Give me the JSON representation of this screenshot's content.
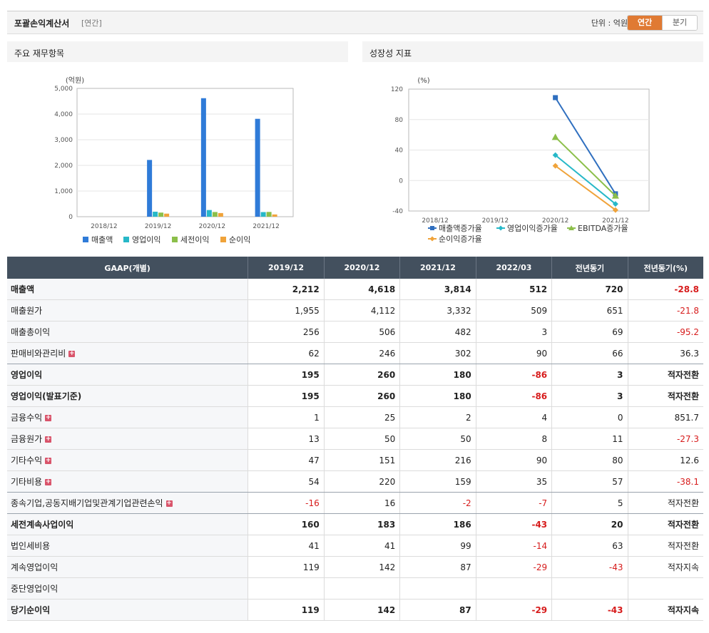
{
  "header": {
    "title": "포괄손익계산서",
    "period": "[연간]",
    "unit_label": "단위 : 억원",
    "toggle": [
      "연간",
      "분기"
    ],
    "active_toggle": "연간"
  },
  "panels": {
    "left_title": "주요 재무항목",
    "right_title": "성장성 지표"
  },
  "chart_data": [
    {
      "type": "bar",
      "title": "주요 재무항목",
      "ylabel": "(억원)",
      "categories": [
        "2018/12",
        "2019/12",
        "2020/12",
        "2021/12"
      ],
      "ylim": [
        0,
        5000
      ],
      "yticks": [
        "0",
        "1,000",
        "2,000",
        "3,000",
        "4,000",
        "5,000"
      ],
      "grid": true,
      "legend": "bottom",
      "series": [
        {
          "name": "매출액",
          "color": "#2f7bd8",
          "values": [
            null,
            2212,
            4618,
            3814
          ]
        },
        {
          "name": "영업이익",
          "color": "#27b8c8",
          "values": [
            null,
            195,
            260,
            180
          ]
        },
        {
          "name": "세전이익",
          "color": "#8cbf4a",
          "values": [
            null,
            160,
            183,
            186
          ]
        },
        {
          "name": "순이익",
          "color": "#f0a33a",
          "values": [
            null,
            119,
            142,
            87
          ]
        }
      ]
    },
    {
      "type": "line",
      "title": "성장성 지표",
      "ylabel": "(%)",
      "categories": [
        "2018/12",
        "2019/12",
        "2020/12",
        "2021/12"
      ],
      "ylim": [
        -40,
        120
      ],
      "yticks": [
        "-40",
        "0",
        "40",
        "80",
        "120"
      ],
      "grid": true,
      "legend": "bottom",
      "series": [
        {
          "name": "매출액증가율",
          "color": "#2f6fbf",
          "marker": "square",
          "values": [
            null,
            null,
            108.8,
            -17.4
          ]
        },
        {
          "name": "영업이익증가율",
          "color": "#27b8c8",
          "marker": "diamond",
          "values": [
            null,
            null,
            33.3,
            -30.8
          ]
        },
        {
          "name": "EBITDA증가율",
          "color": "#8cbf4a",
          "marker": "triangle",
          "values": [
            null,
            null,
            57,
            -20
          ]
        },
        {
          "name": "순이익증가율",
          "color": "#f0a33a",
          "marker": "diamond",
          "values": [
            null,
            null,
            19.3,
            -38.7
          ]
        }
      ]
    }
  ],
  "table": {
    "headers": [
      "GAAP(개별)",
      "2019/12",
      "2020/12",
      "2021/12",
      "2022/03",
      "전년동기",
      "전년동기(%)"
    ],
    "rows": [
      {
        "label": "매출액",
        "bold": true,
        "plus": false,
        "values": [
          "2,212",
          "4,618",
          "3,814",
          "512",
          "720",
          "-28.8"
        ]
      },
      {
        "label": "매출원가",
        "bold": false,
        "plus": false,
        "values": [
          "1,955",
          "4,112",
          "3,332",
          "509",
          "651",
          "-21.8"
        ]
      },
      {
        "label": "매출총이익",
        "bold": false,
        "plus": false,
        "values": [
          "256",
          "506",
          "482",
          "3",
          "69",
          "-95.2"
        ]
      },
      {
        "label": "판매비와관리비",
        "bold": false,
        "plus": true,
        "values": [
          "62",
          "246",
          "302",
          "90",
          "66",
          "36.3"
        ]
      },
      {
        "label": "영업이익",
        "bold": true,
        "plus": false,
        "values": [
          "195",
          "260",
          "180",
          "-86",
          "3",
          "적자전환"
        ]
      },
      {
        "label": "영업이익(발표기준)",
        "bold": true,
        "plus": false,
        "values": [
          "195",
          "260",
          "180",
          "-86",
          "3",
          "적자전환"
        ]
      },
      {
        "label": "금융수익",
        "bold": false,
        "plus": true,
        "values": [
          "1",
          "25",
          "2",
          "4",
          "0",
          "851.7"
        ]
      },
      {
        "label": "금융원가",
        "bold": false,
        "plus": true,
        "values": [
          "13",
          "50",
          "50",
          "8",
          "11",
          "-27.3"
        ]
      },
      {
        "label": "기타수익",
        "bold": false,
        "plus": true,
        "values": [
          "47",
          "151",
          "216",
          "90",
          "80",
          "12.6"
        ]
      },
      {
        "label": "기타비용",
        "bold": false,
        "plus": true,
        "values": [
          "54",
          "220",
          "159",
          "35",
          "57",
          "-38.1"
        ]
      },
      {
        "label": "종속기업,공동지배기업및관계기업관련손익",
        "bold": false,
        "plus": true,
        "values": [
          "-16",
          "16",
          "-2",
          "-7",
          "5",
          "적자전환"
        ]
      },
      {
        "label": "세전계속사업이익",
        "bold": true,
        "plus": false,
        "values": [
          "160",
          "183",
          "186",
          "-43",
          "20",
          "적자전환"
        ]
      },
      {
        "label": "법인세비용",
        "bold": false,
        "plus": false,
        "values": [
          "41",
          "41",
          "99",
          "-14",
          "63",
          "적자전환"
        ]
      },
      {
        "label": "계속영업이익",
        "bold": false,
        "plus": false,
        "values": [
          "119",
          "142",
          "87",
          "-29",
          "-43",
          "적자지속"
        ]
      },
      {
        "label": "중단영업이익",
        "bold": false,
        "plus": false,
        "values": [
          "",
          "",
          "",
          "",
          "",
          ""
        ]
      },
      {
        "label": "당기순이익",
        "bold": true,
        "plus": false,
        "values": [
          "119",
          "142",
          "87",
          "-29",
          "-43",
          "적자지속"
        ]
      }
    ]
  }
}
